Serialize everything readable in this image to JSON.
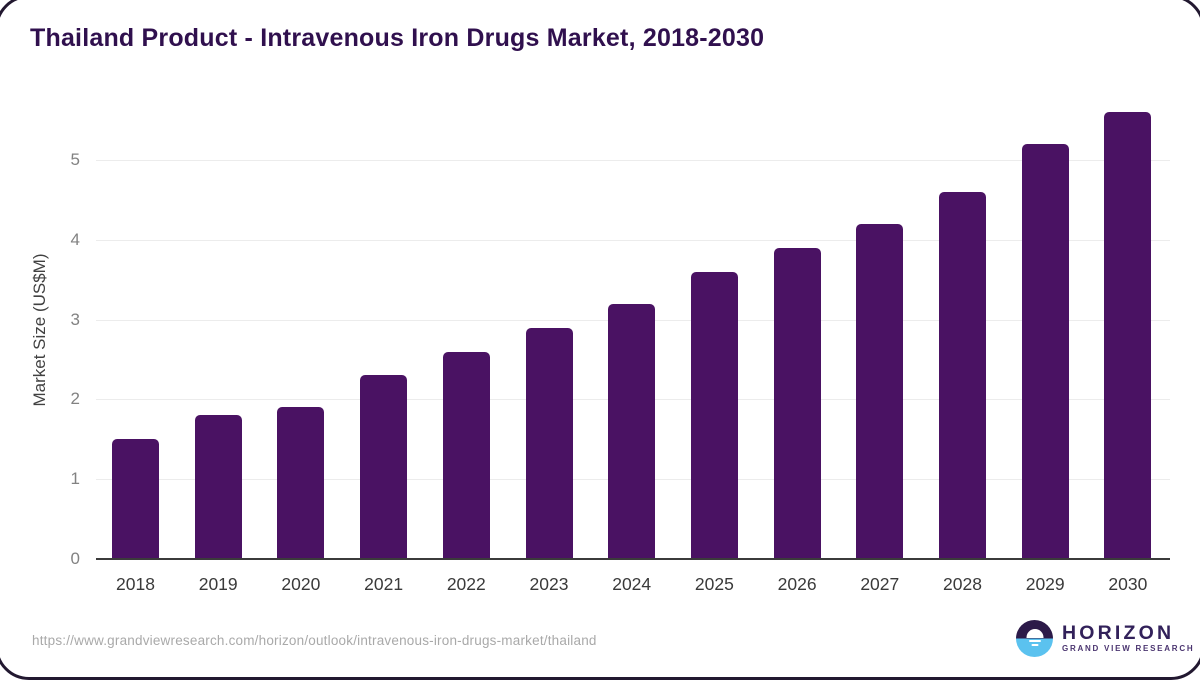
{
  "page": {
    "title": "Thailand Product - Intravenous Iron Drugs Market, 2018-2030",
    "source_url": "https://www.grandviewresearch.com/horizon/outlook/intravenous-iron-drugs-market/thailand"
  },
  "chart_data": {
    "type": "bar",
    "title": "Thailand Product - Intravenous Iron Drugs Market, 2018-2030",
    "xlabel": "",
    "ylabel": "Market Size (US$M)",
    "categories": [
      "2018",
      "2019",
      "2020",
      "2021",
      "2022",
      "2023",
      "2024",
      "2025",
      "2026",
      "2027",
      "2028",
      "2029",
      "2030"
    ],
    "values": [
      1.5,
      1.8,
      1.9,
      2.3,
      2.6,
      2.9,
      3.2,
      3.6,
      3.9,
      4.2,
      4.6,
      5.2,
      5.6
    ],
    "yticks": [
      0,
      1,
      2,
      3,
      4,
      5
    ],
    "ylim": [
      0,
      5.8
    ],
    "grid": true,
    "legend": false,
    "bar_color": "#4A1263"
  },
  "branding": {
    "logo_name": "HORIZON",
    "logo_tagline": "GRAND VIEW RESEARCH",
    "logo_icon": "horizon-sun-icon",
    "colors": {
      "title_purple": "#30104E",
      "bar_purple": "#4A1263",
      "logo_dark_half": "#2C1A49",
      "logo_blue_half": "#5BC2EF"
    }
  }
}
